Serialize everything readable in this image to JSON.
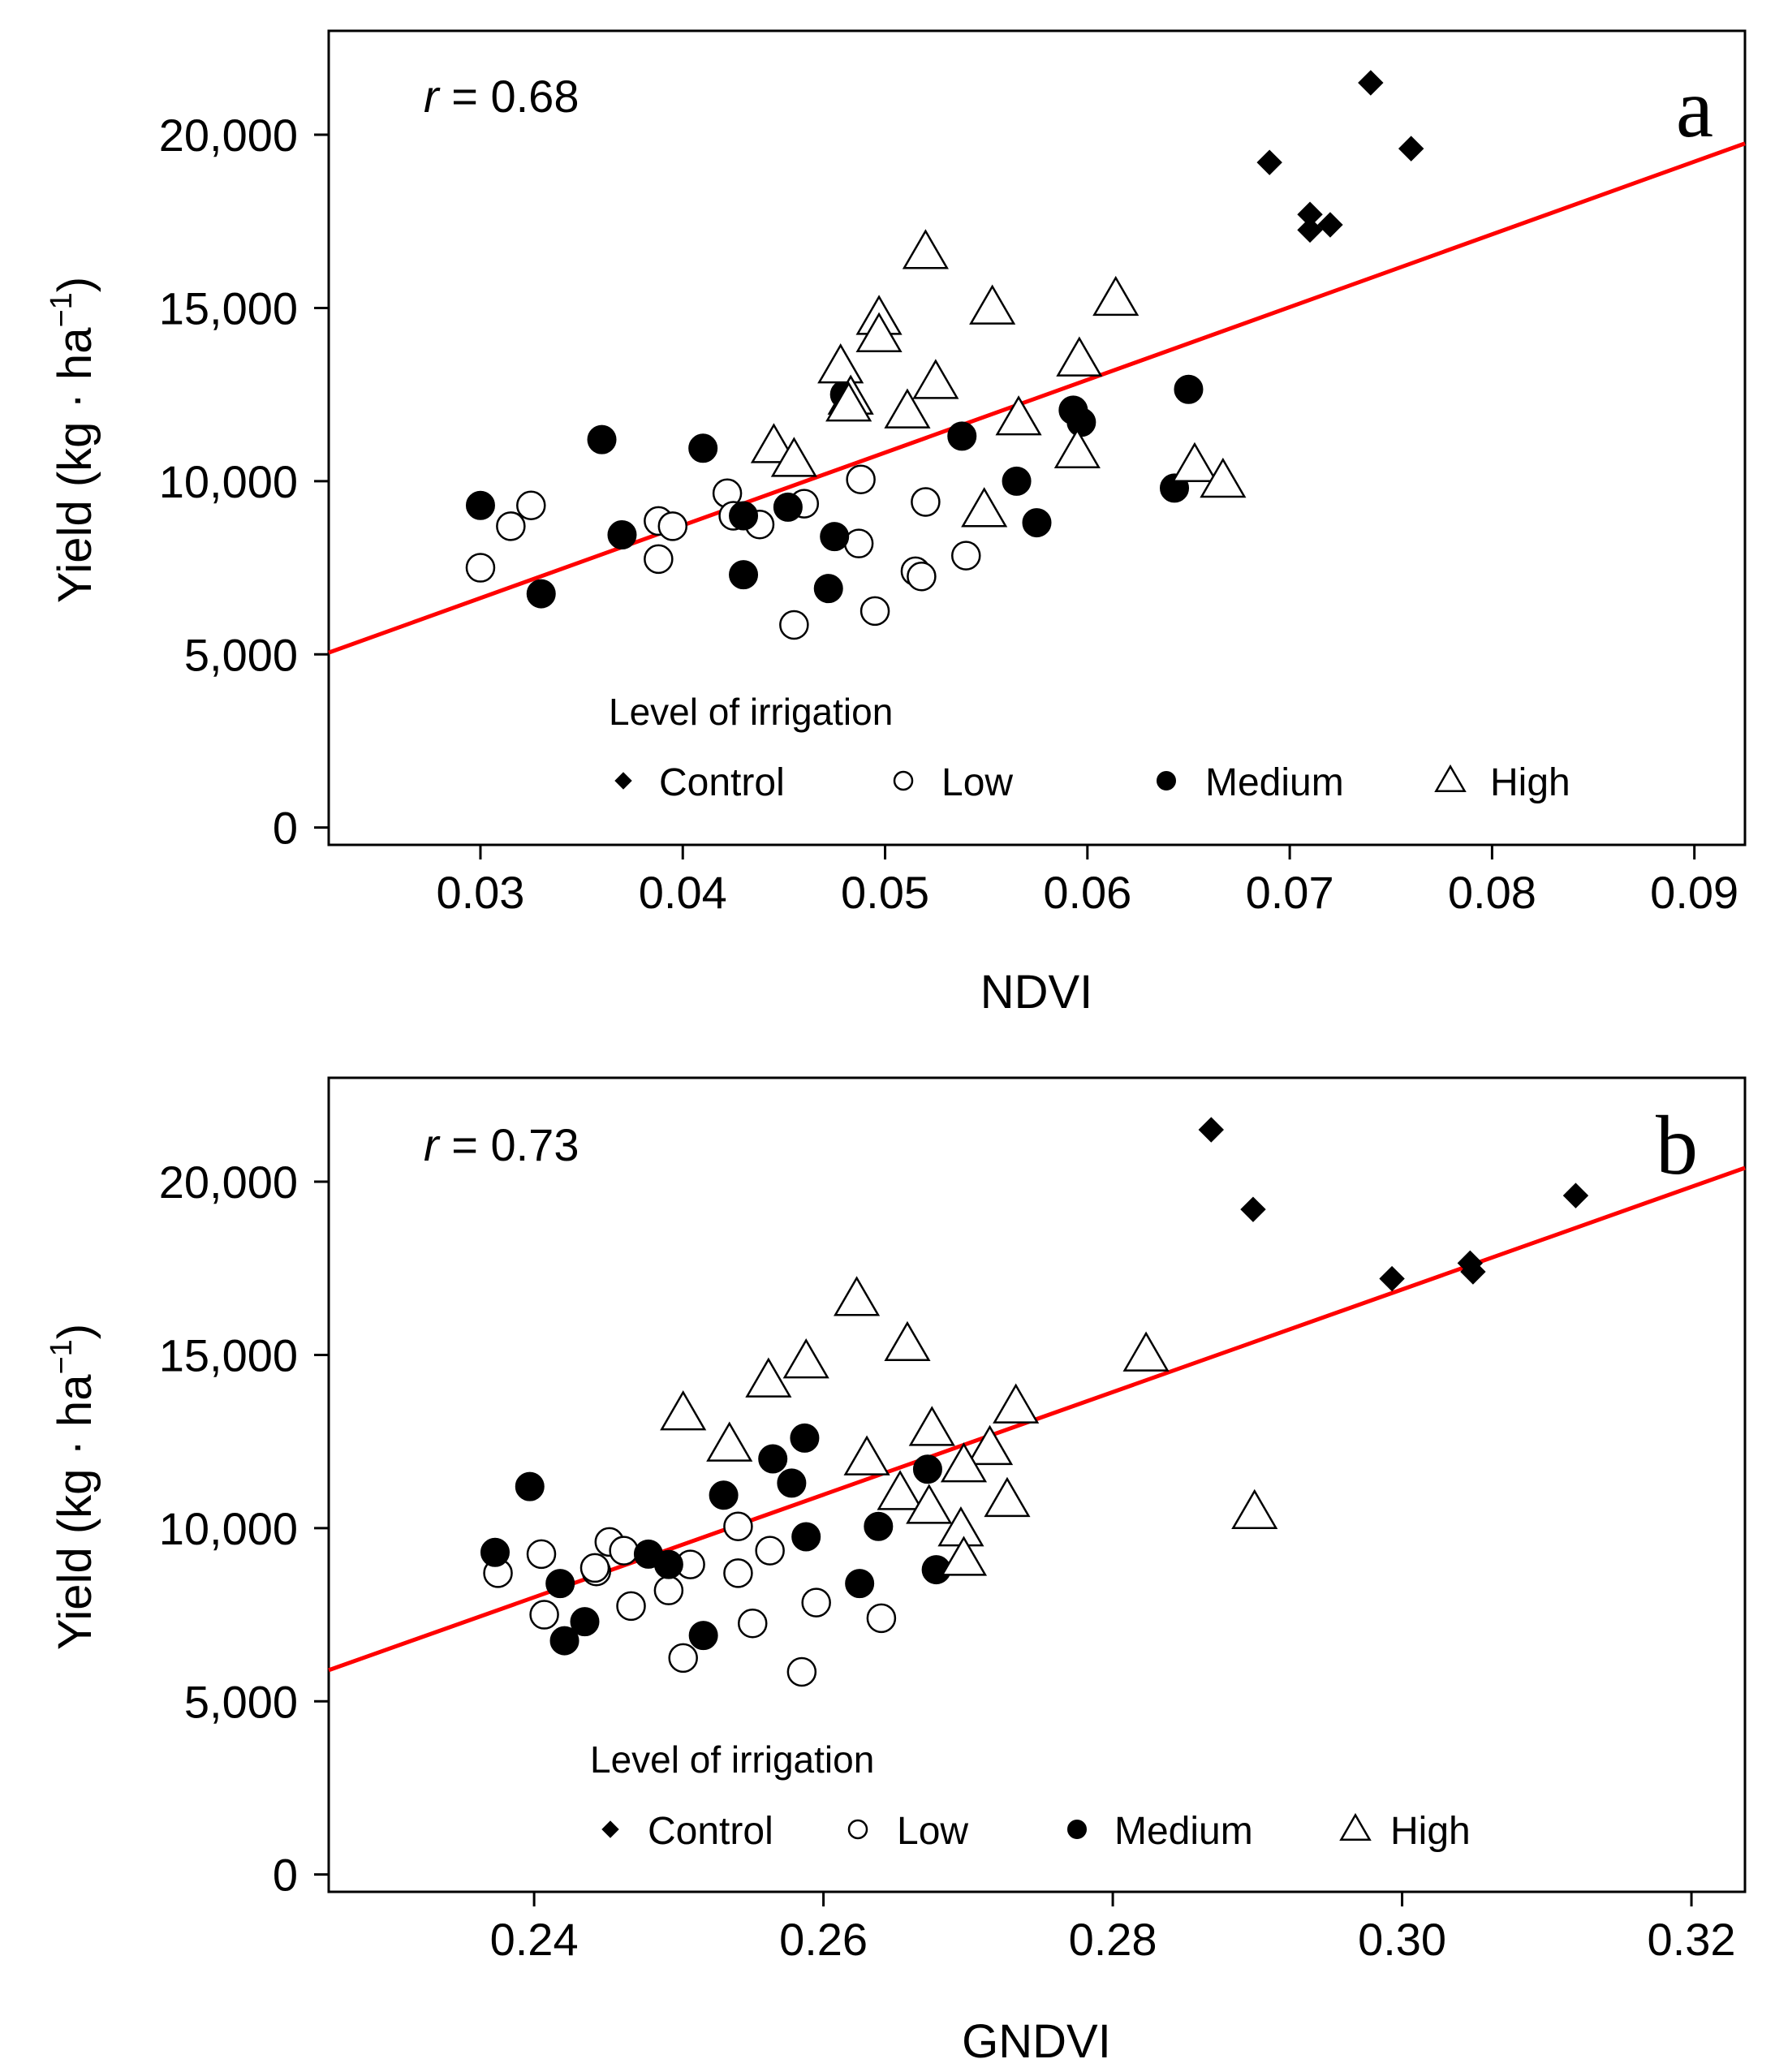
{
  "chart_data": [
    {
      "type": "scatter",
      "panel_label": "a",
      "xlabel": "NDVI",
      "ylabel": "Yield (kg · ha",
      "ylabel_superscript": "−1",
      "ylabel_suffix": ")",
      "annotation_r_symbol": "r",
      "annotation_r_text": " = 0.68",
      "xlim": [
        0.0225,
        0.0925
      ],
      "ylim": [
        -500,
        23000
      ],
      "x_ticks": [
        0.03,
        0.04,
        0.05,
        0.06,
        0.07,
        0.08,
        0.09
      ],
      "x_tick_labels": [
        "0.03",
        "0.04",
        "0.05",
        "0.06",
        "0.07",
        "0.08",
        "0.09"
      ],
      "y_ticks": [
        0,
        5000,
        10000,
        15000,
        20000
      ],
      "y_tick_labels": [
        "0",
        "5,000",
        "10,000",
        "15,000",
        "20,000"
      ],
      "grid": false,
      "legend_title": "Level of irrigation",
      "legend_placement": "bottom",
      "regression_line": {
        "x": [
          0.0225,
          0.0925
        ],
        "y": [
          5050,
          19750
        ],
        "color": "#ff0000"
      },
      "series": [
        {
          "name": "Control",
          "marker": "diamond",
          "points": [
            [
              0.074,
              21500
            ],
            [
              0.069,
              19200
            ],
            [
              0.076,
              19600
            ],
            [
              0.071,
              17700
            ],
            [
              0.072,
              17400
            ],
            [
              0.071,
              17250
            ]
          ]
        },
        {
          "name": "Low",
          "marker": "open-circle",
          "points": [
            [
              0.03,
              7500
            ],
            [
              0.0315,
              8700
            ],
            [
              0.0325,
              9300
            ],
            [
              0.0388,
              8850
            ],
            [
              0.0395,
              8700
            ],
            [
              0.0388,
              7750
            ],
            [
              0.0422,
              9650
            ],
            [
              0.0425,
              9000
            ],
            [
              0.0438,
              8750
            ],
            [
              0.0455,
              5850
            ],
            [
              0.046,
              9350
            ],
            [
              0.0487,
              8200
            ],
            [
              0.0488,
              10050
            ],
            [
              0.0495,
              6250
            ],
            [
              0.0515,
              7400
            ],
            [
              0.0518,
              7250
            ],
            [
              0.052,
              9400
            ],
            [
              0.054,
              7850
            ]
          ]
        },
        {
          "name": "Medium",
          "marker": "filled-circle",
          "points": [
            [
              0.03,
              9300
            ],
            [
              0.033,
              6750
            ],
            [
              0.036,
              11200
            ],
            [
              0.037,
              8450
            ],
            [
              0.041,
              10950
            ],
            [
              0.043,
              9000
            ],
            [
              0.043,
              7300
            ],
            [
              0.0452,
              9250
            ],
            [
              0.0472,
              6900
            ],
            [
              0.0475,
              8400
            ],
            [
              0.048,
              12500
            ],
            [
              0.0538,
              11300
            ],
            [
              0.0565,
              10000
            ],
            [
              0.0575,
              8800
            ],
            [
              0.0593,
              12050
            ],
            [
              0.0597,
              11700
            ],
            [
              0.0643,
              9800
            ],
            [
              0.065,
              12650
            ]
          ]
        },
        {
          "name": "High",
          "marker": "open-triangle",
          "points": [
            [
              0.052,
              16600
            ],
            [
              0.0553,
              15000
            ],
            [
              0.0614,
              15250
            ],
            [
              0.0497,
              14700
            ],
            [
              0.0497,
              14200
            ],
            [
              0.0478,
              13300
            ],
            [
              0.0596,
              13500
            ],
            [
              0.0525,
              12850
            ],
            [
              0.0483,
              12400
            ],
            [
              0.0482,
              12200
            ],
            [
              0.0511,
              12000
            ],
            [
              0.0566,
              11800
            ],
            [
              0.0445,
              11000
            ],
            [
              0.0455,
              10600
            ],
            [
              0.0595,
              10850
            ],
            [
              0.0653,
              10450
            ],
            [
              0.0667,
              10000
            ],
            [
              0.0549,
              9150
            ]
          ]
        }
      ]
    },
    {
      "type": "scatter",
      "panel_label": "b",
      "xlabel": "GNDVI",
      "ylabel": "Yield (kg · ha",
      "ylabel_superscript": "−1",
      "ylabel_suffix": ")",
      "annotation_r_symbol": "r",
      "annotation_r_text": " = 0.73",
      "xlim": [
        0.2258,
        0.3237
      ],
      "ylim": [
        -500,
        23000
      ],
      "x_ticks": [
        0.24,
        0.26,
        0.28,
        0.3,
        0.32
      ],
      "x_tick_labels": [
        "0.24",
        "0.26",
        "0.28",
        "0.30",
        "0.32"
      ],
      "y_ticks": [
        0,
        5000,
        10000,
        15000,
        20000
      ],
      "y_tick_labels": [
        "0",
        "5,000",
        "10,000",
        "15,000",
        "20,000"
      ],
      "grid": false,
      "legend_title": "Level of irrigation",
      "legend_placement": "bottom",
      "regression_line": {
        "x": [
          0.2258,
          0.3237
        ],
        "y": [
          5900,
          20400
        ],
        "color": "#ff0000"
      },
      "series": [
        {
          "name": "Control",
          "marker": "diamond",
          "points": [
            [
              0.2868,
              21500
            ],
            [
              0.2897,
              19200
            ],
            [
              0.312,
              19600
            ],
            [
              0.3047,
              17650
            ],
            [
              0.3049,
              17400
            ],
            [
              0.2993,
              17200
            ]
          ]
        },
        {
          "name": "Low",
          "marker": "open-circle",
          "points": [
            [
              0.2375,
              8700
            ],
            [
              0.2405,
              9250
            ],
            [
              0.2407,
              7500
            ],
            [
              0.2443,
              8750
            ],
            [
              0.2452,
              9600
            ],
            [
              0.2442,
              8850
            ],
            [
              0.2462,
              9350
            ],
            [
              0.2467,
              7750
            ],
            [
              0.2493,
              8200
            ],
            [
              0.2508,
              8950
            ],
            [
              0.2503,
              6250
            ],
            [
              0.2541,
              10050
            ],
            [
              0.2541,
              8700
            ],
            [
              0.2551,
              7250
            ],
            [
              0.2563,
              9350
            ],
            [
              0.2585,
              5850
            ],
            [
              0.2595,
              7850
            ],
            [
              0.264,
              7400
            ]
          ]
        },
        {
          "name": "Medium",
          "marker": "filled-circle",
          "points": [
            [
              0.2373,
              9300
            ],
            [
              0.2397,
              11200
            ],
            [
              0.2418,
              8400
            ],
            [
              0.2421,
              6750
            ],
            [
              0.2435,
              7300
            ],
            [
              0.2479,
              9250
            ],
            [
              0.2493,
              8950
            ],
            [
              0.2517,
              6900
            ],
            [
              0.2531,
              10950
            ],
            [
              0.2565,
              12000
            ],
            [
              0.2578,
              11300
            ],
            [
              0.2587,
              12600
            ],
            [
              0.2588,
              9750
            ],
            [
              0.2625,
              8400
            ],
            [
              0.2638,
              10050
            ],
            [
              0.2672,
              11700
            ],
            [
              0.2678,
              8800
            ]
          ]
        },
        {
          "name": "High",
          "marker": "open-triangle",
          "points": [
            [
              0.2623,
              16600
            ],
            [
              0.2658,
              15300
            ],
            [
              0.2823,
              15000
            ],
            [
              0.2588,
              14800
            ],
            [
              0.2562,
              14250
            ],
            [
              0.2503,
              13300
            ],
            [
              0.2733,
              13500
            ],
            [
              0.2675,
              12850
            ],
            [
              0.2535,
              12400
            ],
            [
              0.2715,
              12300
            ],
            [
              0.263,
              12000
            ],
            [
              0.2697,
              11800
            ],
            [
              0.2653,
              11000
            ],
            [
              0.2673,
              10600
            ],
            [
              0.2727,
              10800
            ],
            [
              0.2898,
              10450
            ],
            [
              0.2695,
              9950
            ],
            [
              0.2697,
              9100
            ]
          ]
        }
      ]
    }
  ]
}
